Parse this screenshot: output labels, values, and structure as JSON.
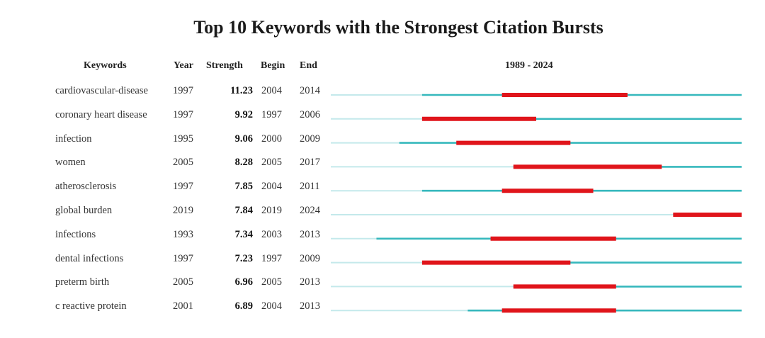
{
  "chart_data": {
    "type": "table",
    "title": "Top 10 Keywords with the Strongest Citation Bursts",
    "columns": [
      "Keywords",
      "Year",
      "Strength",
      "Begin",
      "End",
      "1989 - 2024"
    ],
    "range_label": "1989 - 2024",
    "range": [
      1989,
      2024
    ],
    "colors": {
      "burst": "#e0151b",
      "active": "#36b8bd",
      "inactive": "#c4e9eb"
    },
    "rows": [
      {
        "keyword": "cardiovascular-disease",
        "year": "1997",
        "strength": "11.23",
        "begin": "2004",
        "end": "2014"
      },
      {
        "keyword": "coronary heart disease",
        "year": "1997",
        "strength": "9.92",
        "begin": "1997",
        "end": "2006"
      },
      {
        "keyword": "infection",
        "year": "1995",
        "strength": "9.06",
        "begin": "2000",
        "end": "2009"
      },
      {
        "keyword": "women",
        "year": "2005",
        "strength": "8.28",
        "begin": "2005",
        "end": "2017"
      },
      {
        "keyword": "atherosclerosis",
        "year": "1997",
        "strength": "7.85",
        "begin": "2004",
        "end": "2011"
      },
      {
        "keyword": "global burden",
        "year": "2019",
        "strength": "7.84",
        "begin": "2019",
        "end": "2024"
      },
      {
        "keyword": "infections",
        "year": "1993",
        "strength": "7.34",
        "begin": "2003",
        "end": "2013"
      },
      {
        "keyword": "dental infections",
        "year": "1997",
        "strength": "7.23",
        "begin": "1997",
        "end": "2009"
      },
      {
        "keyword": "preterm birth",
        "year": "2005",
        "strength": "6.96",
        "begin": "2005",
        "end": "2013"
      },
      {
        "keyword": "c reactive protein",
        "year": "2001",
        "strength": "6.89",
        "begin": "2004",
        "end": "2013"
      }
    ]
  }
}
